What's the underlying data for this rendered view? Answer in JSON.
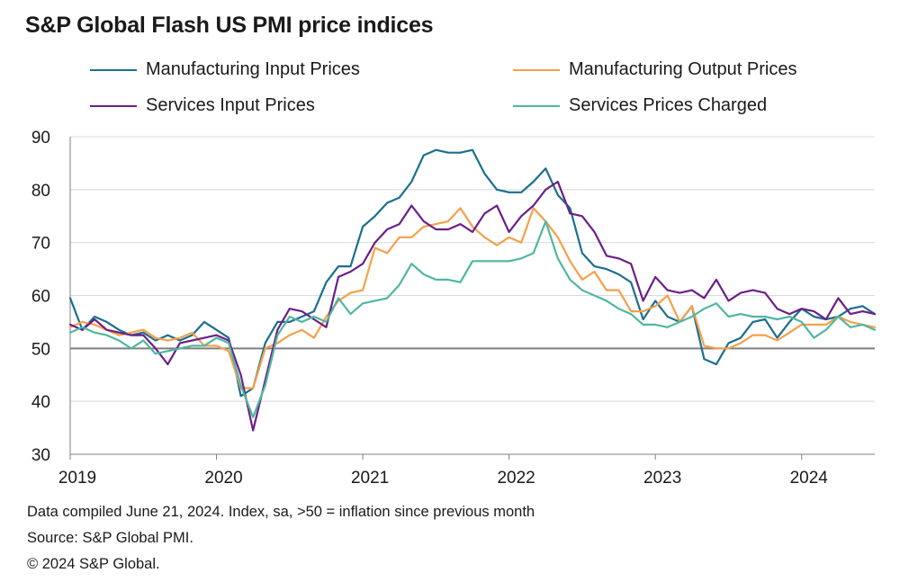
{
  "chart_data": {
    "type": "line",
    "title": "S&P Global Flash US PMI price indices",
    "ylim": [
      30,
      90
    ],
    "yticks": [
      30,
      40,
      50,
      60,
      70,
      80,
      90
    ],
    "xticks": [
      "2019",
      "2020",
      "2021",
      "2022",
      "2023",
      "2024"
    ],
    "reference_line": 50,
    "x_start": "2019-01",
    "series": [
      {
        "name": "Manufacturing Input Prices",
        "color": "#1b6f8e",
        "values": [
          59.5,
          53.5,
          56,
          55,
          53.5,
          52.5,
          53,
          51.5,
          52.5,
          51.5,
          52.5,
          55,
          53.5,
          52,
          41,
          42.5,
          51,
          55,
          55,
          56,
          57,
          62.5,
          65.5,
          65.5,
          73,
          75,
          77.5,
          78.5,
          81.5,
          86.5,
          87.5,
          87,
          87,
          87.5,
          83,
          80,
          79.5,
          79.5,
          81.5,
          84,
          79,
          76.5,
          68,
          65.5,
          65,
          64,
          62.5,
          55.5,
          59,
          56,
          55,
          58,
          48,
          47,
          51,
          52,
          55,
          55.5,
          52,
          55,
          57.5,
          56,
          55.5,
          56,
          57.5,
          58,
          56.5
        ]
      },
      {
        "name": "Manufacturing Output Prices",
        "color": "#f5a04a",
        "values": [
          54,
          55,
          54.5,
          53.5,
          52.5,
          53,
          53.5,
          52,
          51.5,
          52,
          53,
          50.5,
          50.5,
          49.5,
          42.5,
          42.5,
          50,
          51,
          52.5,
          53.5,
          52,
          56,
          59,
          60.5,
          61,
          69,
          68,
          71,
          71,
          73,
          73.5,
          74,
          76.5,
          73,
          71,
          69.5,
          71,
          70,
          76.5,
          74,
          71,
          66.5,
          63,
          64.5,
          61,
          61,
          57,
          57,
          58,
          60,
          55,
          58,
          50.5,
          50,
          50,
          51,
          52.5,
          52.5,
          51.5,
          53,
          54.5,
          54.5,
          54.5,
          56,
          55,
          54.5,
          54
        ]
      },
      {
        "name": "Services Input Prices",
        "color": "#6b1f87",
        "values": [
          54.5,
          53.5,
          55.5,
          53.5,
          53,
          52.5,
          52.5,
          50,
          47,
          51,
          51.5,
          52,
          52.5,
          51.5,
          45,
          34.5,
          44,
          53.5,
          57.5,
          57,
          55.5,
          54,
          63.5,
          64.5,
          66,
          70,
          72.5,
          73.5,
          77,
          74,
          72.5,
          72.5,
          73.5,
          72,
          75.5,
          77,
          72,
          75,
          77,
          80,
          81.5,
          75.5,
          75,
          72,
          67.5,
          67,
          66,
          59,
          63.5,
          61,
          60.5,
          61,
          59.5,
          63,
          59,
          60.5,
          61,
          60.5,
          57.5,
          56.5,
          57.5,
          57,
          55.5,
          59.5,
          56.5,
          57,
          56.5
        ]
      },
      {
        "name": "Services Prices Charged",
        "color": "#4fb7a1",
        "values": [
          53,
          54,
          53,
          52.5,
          51.5,
          50,
          51.5,
          49,
          49.5,
          50,
          50.5,
          50.5,
          52,
          51,
          43,
          37,
          43,
          52.5,
          56,
          55,
          56,
          55,
          59.5,
          56.5,
          58.5,
          59,
          59.5,
          62,
          66,
          64,
          63,
          63,
          62.5,
          66.5,
          66.5,
          66.5,
          66.5,
          67,
          68,
          74,
          67,
          63,
          61,
          60,
          59,
          57.5,
          56.5,
          54.5,
          54.5,
          54,
          55,
          56,
          57.5,
          58.5,
          56,
          56.5,
          56,
          56,
          55.5,
          56,
          55,
          52,
          53.5,
          56,
          54,
          54.5,
          53.5
        ]
      }
    ]
  },
  "footer": {
    "line1": "Data compiled June 21, 2024. Index, sa, >50 = inflation since previous month",
    "line2": "Source: S&P Global PMI.",
    "line3": "© 2024 S&P Global."
  }
}
